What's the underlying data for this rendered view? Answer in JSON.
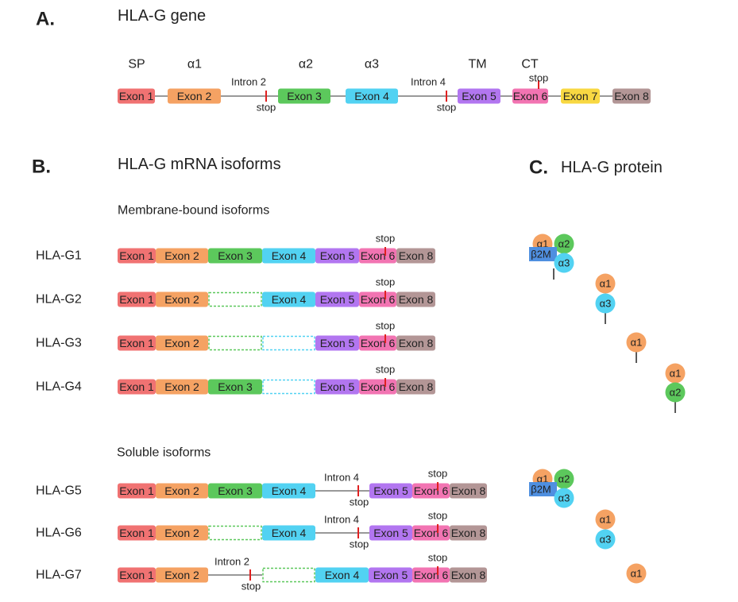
{
  "panel_a": {
    "letter": "A.",
    "title": "HLA-G gene",
    "domains": [
      "SP",
      "α1",
      "α2",
      "α3",
      "TM",
      "CT"
    ],
    "exons": [
      "Exon 1",
      "Exon 2",
      "Exon 3",
      "Exon 4",
      "Exon 5",
      "Exon 6",
      "Exon 7",
      "Exon 8"
    ],
    "introns": [
      "Intron 2",
      "Intron 4"
    ],
    "stops": [
      "stop",
      "stop",
      "stop"
    ]
  },
  "panel_b": {
    "letter": "B.",
    "title": "HLA-G mRNA isoforms",
    "membrane": {
      "title": "Membrane-bound isoforms",
      "isoforms": [
        {
          "name": "HLA-G1",
          "exons": [
            "Exon 1",
            "Exon 2",
            "Exon 3",
            "Exon 4",
            "Exon 5",
            "Exon 6",
            "Exon 8"
          ],
          "stop": "stop"
        },
        {
          "name": "HLA-G2",
          "exons": [
            "Exon 1",
            "Exon 2",
            "Exon 4",
            "Exon 5",
            "Exon 6",
            "Exon 8"
          ],
          "stop": "stop"
        },
        {
          "name": "HLA-G3",
          "exons": [
            "Exon 1",
            "Exon 2",
            "Exon 5",
            "Exon 6",
            "Exon 8"
          ],
          "stop": "stop"
        },
        {
          "name": "HLA-G4",
          "exons": [
            "Exon 1",
            "Exon 2",
            "Exon 3",
            "Exon 5",
            "Exon 6",
            "Exon 8"
          ],
          "stop": "stop"
        }
      ]
    },
    "soluble": {
      "title": "Soluble isoforms",
      "isoforms": [
        {
          "name": "HLA-G5",
          "exons": [
            "Exon 1",
            "Exon 2",
            "Exon 3",
            "Exon 4",
            "Exon 5",
            "Exon 6",
            "Exon 8"
          ],
          "intron": "Intron 4",
          "intron_stop": "stop",
          "stop": "stop"
        },
        {
          "name": "HLA-G6",
          "exons": [
            "Exon 1",
            "Exon 2",
            "Exon 4",
            "Exon 5",
            "Exon 6",
            "Exon 8"
          ],
          "intron": "Intron 4",
          "intron_stop": "stop",
          "stop": "stop"
        },
        {
          "name": "HLA-G7",
          "exons": [
            "Exon 1",
            "Exon 2",
            "Exon 4",
            "Exon 5",
            "Exon 6",
            "Exon 8"
          ],
          "intron": "Intron 2",
          "intron_stop": "stop",
          "stop": "stop"
        }
      ]
    }
  },
  "panel_c": {
    "letter": "C.",
    "title": "HLA-G protein",
    "membrane": [
      [
        "α1",
        "α2",
        "β2M",
        "α3"
      ],
      [
        "α1",
        "α3"
      ],
      [
        "α1"
      ],
      [
        "α1",
        "α2"
      ]
    ],
    "soluble": [
      [
        "α1",
        "α2",
        "β2M",
        "α3"
      ],
      [
        "α1",
        "α3"
      ],
      [
        "α1"
      ]
    ]
  }
}
